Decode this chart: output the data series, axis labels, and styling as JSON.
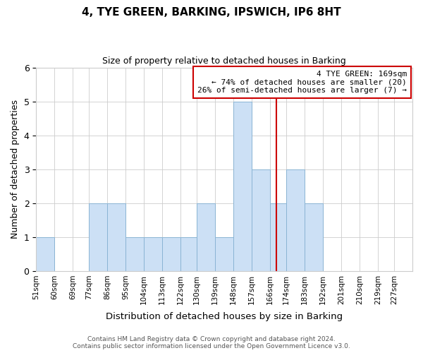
{
  "title": "4, TYE GREEN, BARKING, IPSWICH, IP6 8HT",
  "subtitle": "Size of property relative to detached houses in Barking",
  "xlabel": "Distribution of detached houses by size in Barking",
  "ylabel": "Number of detached properties",
  "bin_labels": [
    "51sqm",
    "60sqm",
    "69sqm",
    "77sqm",
    "86sqm",
    "95sqm",
    "104sqm",
    "113sqm",
    "122sqm",
    "130sqm",
    "139sqm",
    "148sqm",
    "157sqm",
    "166sqm",
    "174sqm",
    "183sqm",
    "192sqm",
    "201sqm",
    "210sqm",
    "219sqm",
    "227sqm"
  ],
  "bar_values": [
    1,
    0,
    0,
    2,
    2,
    1,
    1,
    1,
    1,
    2,
    1,
    5,
    3,
    2,
    3,
    2,
    0,
    0,
    0,
    0,
    0
  ],
  "bar_color": "#cce0f5",
  "bar_edge_color": "#8ab4d4",
  "property_line_color": "#cc0000",
  "annotation_title": "4 TYE GREEN: 169sqm",
  "annotation_line1": "← 74% of detached houses are smaller (20)",
  "annotation_line2": "26% of semi-detached houses are larger (7) →",
  "annotation_box_color": "#cc0000",
  "ylim": [
    0,
    6
  ],
  "yticks": [
    0,
    1,
    2,
    3,
    4,
    5,
    6
  ],
  "footer_line1": "Contains HM Land Registry data © Crown copyright and database right 2024.",
  "footer_line2": "Contains public sector information licensed under the Open Government Licence v3.0.",
  "bin_edges_sqm": [
    51,
    60,
    69,
    77,
    86,
    95,
    104,
    113,
    122,
    130,
    139,
    148,
    157,
    166,
    174,
    183,
    192,
    201,
    210,
    219,
    227,
    236
  ],
  "property_size": 169
}
